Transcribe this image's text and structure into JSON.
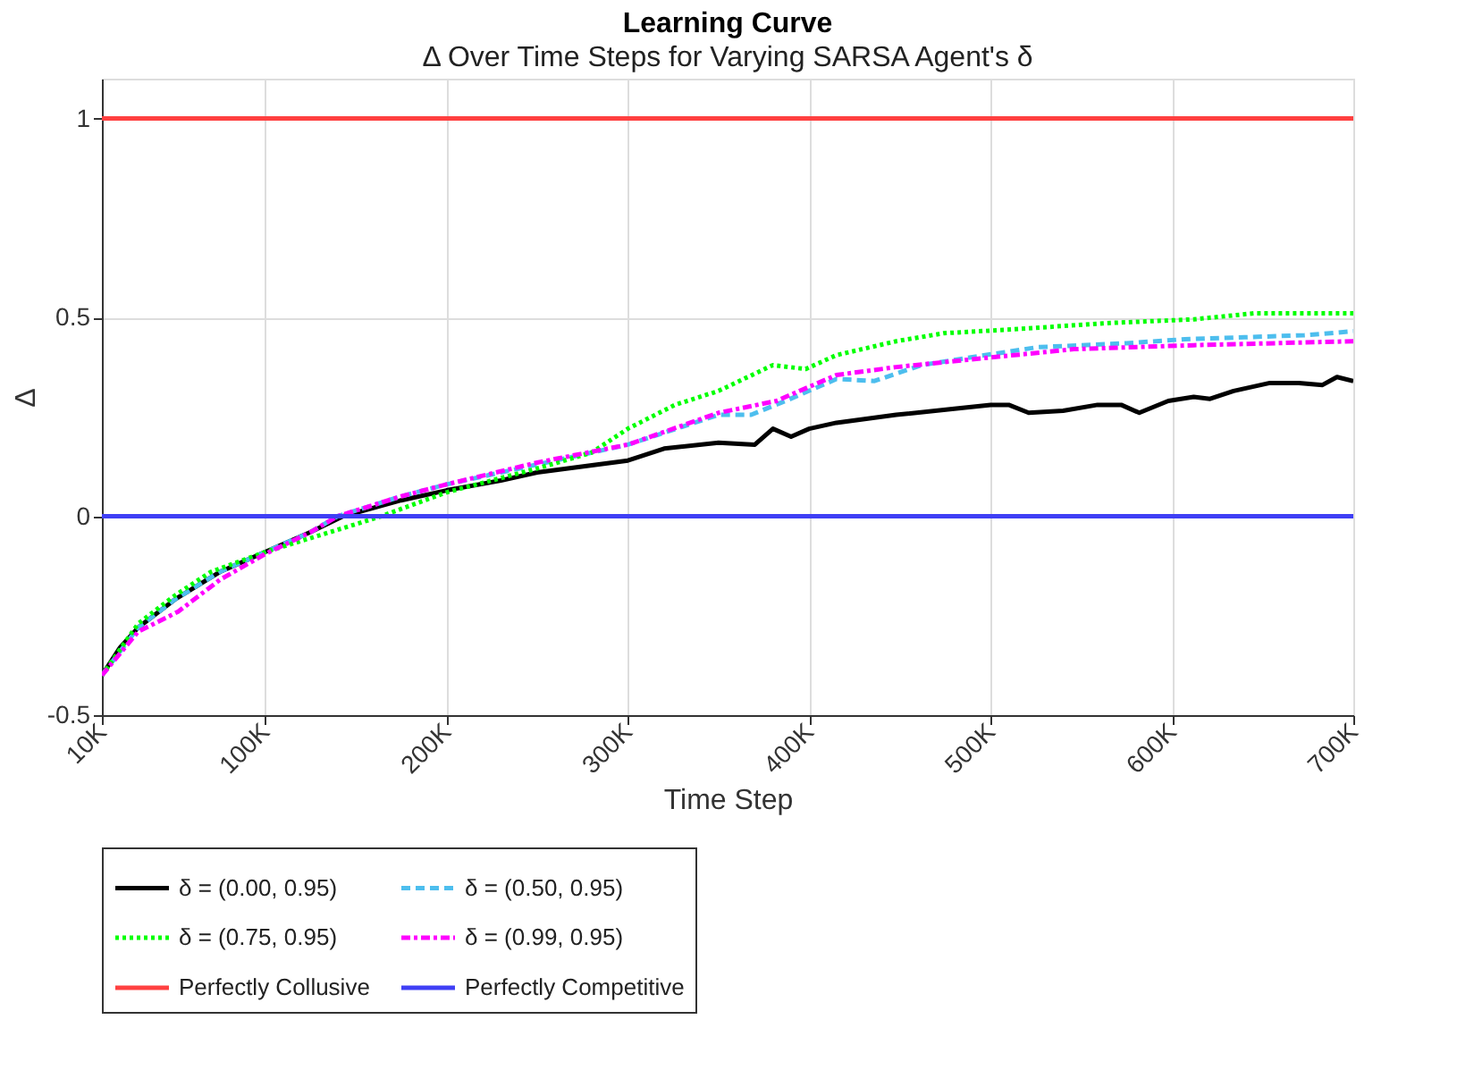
{
  "chart_data": {
    "type": "line",
    "title": "Learning Curve",
    "subtitle": "Δ Over Time Steps for Varying SARSA Agent's δ",
    "xlabel": "Time Step",
    "ylabel": "Δ",
    "xlim": [
      10000,
      700000
    ],
    "xticks": [
      {
        "value": 10000,
        "label": "10K"
      },
      {
        "value": 100000,
        "label": "100K"
      },
      {
        "value": 200000,
        "label": "200K"
      },
      {
        "value": 300000,
        "label": "300K"
      },
      {
        "value": 400000,
        "label": "400K"
      },
      {
        "value": 500000,
        "label": "500K"
      },
      {
        "value": 600000,
        "label": "600K"
      },
      {
        "value": 700000,
        "label": "700K"
      }
    ],
    "ylim": [
      -0.5,
      1.1
    ],
    "yticks": [
      -0.5,
      0,
      0.5,
      1
    ],
    "grid": true,
    "legend": "bottom",
    "marker": "none",
    "series": [
      {
        "name": "δ = (0.00, 0.95)",
        "color": "#000000",
        "line_style": "solid",
        "x": [
          10000,
          20000,
          30000,
          50000,
          75000,
          100000,
          125000,
          143000,
          175000,
          200000,
          230000,
          250000,
          300000,
          320000,
          350000,
          370000,
          380000,
          390000,
          400000,
          415000,
          448000,
          480000,
          500000,
          510000,
          521000,
          540000,
          559000,
          572000,
          582000,
          598000,
          612000,
          621000,
          634000,
          654000,
          670000,
          683000,
          691000,
          700000
        ],
        "values": [
          -0.4,
          -0.33,
          -0.28,
          -0.21,
          -0.14,
          -0.09,
          -0.04,
          0.0,
          0.04,
          0.065,
          0.09,
          0.11,
          0.14,
          0.17,
          0.185,
          0.18,
          0.22,
          0.2,
          0.22,
          0.235,
          0.255,
          0.27,
          0.28,
          0.28,
          0.26,
          0.265,
          0.28,
          0.28,
          0.26,
          0.29,
          0.3,
          0.295,
          0.315,
          0.335,
          0.335,
          0.33,
          0.35,
          0.34
        ]
      },
      {
        "name": "δ = (0.50, 0.95)",
        "color": "#4dbeee",
        "line_style": "dashed",
        "x": [
          10000,
          30000,
          50000,
          75000,
          100000,
          125000,
          140000,
          175000,
          200000,
          250000,
          300000,
          350000,
          368000,
          387000,
          415000,
          436000,
          462000,
          490000,
          526000,
          575000,
          607000,
          640000,
          673000,
          700000
        ],
        "values": [
          -0.4,
          -0.28,
          -0.21,
          -0.14,
          -0.09,
          -0.04,
          0.0,
          0.05,
          0.08,
          0.13,
          0.18,
          0.255,
          0.255,
          0.29,
          0.345,
          0.34,
          0.38,
          0.4,
          0.425,
          0.435,
          0.445,
          0.45,
          0.455,
          0.465
        ]
      },
      {
        "name": "δ = (0.75, 0.95)",
        "color": "#00ff00",
        "line_style": "dotted",
        "x": [
          10000,
          30000,
          50000,
          70000,
          100000,
          150000,
          164000,
          200000,
          250000,
          280000,
          300000,
          326000,
          350000,
          380000,
          398000,
          415000,
          448000,
          474000,
          513000,
          562000,
          612000,
          645000,
          700000
        ],
        "values": [
          -0.4,
          -0.27,
          -0.2,
          -0.14,
          -0.09,
          -0.02,
          0.0,
          0.06,
          0.12,
          0.16,
          0.22,
          0.28,
          0.315,
          0.38,
          0.37,
          0.405,
          0.44,
          0.46,
          0.47,
          0.485,
          0.495,
          0.51,
          0.51
        ]
      },
      {
        "name": "δ = (0.99, 0.95)",
        "color": "#ff00ff",
        "line_style": "dashdot",
        "x": [
          10000,
          30000,
          52000,
          75000,
          100000,
          125000,
          140000,
          175000,
          200000,
          250000,
          300000,
          350000,
          382000,
          415000,
          448000,
          480000,
          513000,
          546000,
          612000,
          700000
        ],
        "values": [
          -0.4,
          -0.29,
          -0.24,
          -0.16,
          -0.095,
          -0.04,
          0.0,
          0.05,
          0.08,
          0.135,
          0.18,
          0.26,
          0.29,
          0.355,
          0.375,
          0.39,
          0.405,
          0.42,
          0.43,
          0.44
        ]
      },
      {
        "name": "Perfectly Collusive",
        "color": "#ff4040",
        "line_style": "solid",
        "x": [
          10000,
          700000
        ],
        "values": [
          1,
          1
        ]
      },
      {
        "name": "Perfectly Competitive",
        "color": "#3f3ff5",
        "line_style": "solid",
        "x": [
          10000,
          700000
        ],
        "values": [
          0,
          0
        ]
      }
    ]
  }
}
